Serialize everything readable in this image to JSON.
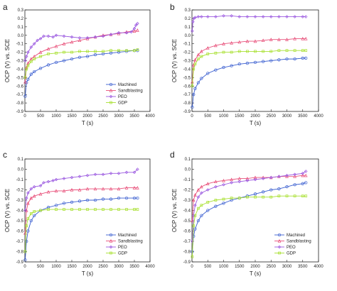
{
  "colors": {
    "Machined": "#3b5fd0",
    "Sandblasting": "#e8507a",
    "PEO": "#9b59e0",
    "GDP": "#a8e030",
    "axis": "#222222"
  },
  "chart_data": [
    {
      "panel_label": "a",
      "type": "line",
      "xlabel": "T (s)",
      "ylabel": "OCP (V) vs. SCE",
      "xlim": [
        0,
        4000
      ],
      "ylim": [
        -0.9,
        0.3
      ],
      "xticks": [
        0,
        500,
        1000,
        1500,
        2000,
        2500,
        3000,
        3500,
        4000
      ],
      "yticks": [
        -0.9,
        -0.8,
        -0.7,
        -0.6,
        -0.5,
        -0.4,
        -0.3,
        -0.2,
        -0.1,
        0.0,
        0.1,
        0.2,
        0.3
      ],
      "ytick_labels": [
        "-0.9",
        "-0.8",
        "-0.7",
        "-0.6",
        "-0.5",
        "-0.4",
        "-0.3",
        "-0.2",
        "-0.1",
        "0.0",
        "0.1",
        "0.2",
        "0.3"
      ],
      "legend": {
        "position": "bottom-right",
        "entries": [
          "Machined",
          "Sandblasting",
          "PEO",
          "GDP"
        ]
      },
      "series": [
        {
          "name": "Machined",
          "marker": "circle",
          "x": [
            10,
            50,
            100,
            200,
            300,
            500,
            750,
            1000,
            1250,
            1500,
            1750,
            2000,
            2250,
            2500,
            2750,
            3000,
            3250,
            3500,
            3600
          ],
          "y": [
            -0.72,
            -0.56,
            -0.52,
            -0.46,
            -0.43,
            -0.39,
            -0.35,
            -0.32,
            -0.3,
            -0.28,
            -0.26,
            -0.25,
            -0.23,
            -0.22,
            -0.21,
            -0.2,
            -0.19,
            -0.18,
            -0.18
          ]
        },
        {
          "name": "Sandblasting",
          "marker": "triangle",
          "x": [
            10,
            50,
            100,
            200,
            300,
            500,
            750,
            1000,
            1250,
            1500,
            1750,
            2000,
            2250,
            2500,
            2750,
            3000,
            3250,
            3500,
            3600
          ],
          "y": [
            -0.55,
            -0.38,
            -0.33,
            -0.28,
            -0.25,
            -0.2,
            -0.16,
            -0.13,
            -0.1,
            -0.08,
            -0.06,
            -0.04,
            -0.02,
            0.0,
            0.01,
            0.02,
            0.04,
            0.05,
            0.06
          ]
        },
        {
          "name": "PEO",
          "marker": "diamond",
          "x": [
            10,
            50,
            100,
            200,
            300,
            400,
            500,
            600,
            750,
            900,
            1000,
            1250,
            1500,
            1750,
            2000,
            2250,
            2500,
            2750,
            3000,
            3250,
            3400,
            3500,
            3550,
            3600
          ],
          "y": [
            -0.3,
            -0.25,
            -0.2,
            -0.14,
            -0.1,
            -0.06,
            -0.04,
            -0.01,
            -0.01,
            -0.02,
            0.0,
            -0.01,
            -0.02,
            -0.03,
            -0.03,
            -0.02,
            -0.01,
            0.01,
            0.03,
            0.03,
            0.04,
            0.08,
            0.12,
            0.14
          ]
        },
        {
          "name": "GDP",
          "marker": "square",
          "x": [
            10,
            50,
            100,
            200,
            300,
            500,
            750,
            1000,
            1250,
            1500,
            1750,
            2000,
            2250,
            2500,
            2750,
            3000,
            3250,
            3500,
            3600
          ],
          "y": [
            -0.5,
            -0.4,
            -0.36,
            -0.31,
            -0.28,
            -0.25,
            -0.22,
            -0.21,
            -0.2,
            -0.2,
            -0.19,
            -0.19,
            -0.19,
            -0.19,
            -0.18,
            -0.18,
            -0.18,
            -0.18,
            -0.17
          ]
        }
      ]
    },
    {
      "panel_label": "b",
      "type": "line",
      "xlabel": "T (s)",
      "ylabel": "OCP (V) vs. SCE",
      "xlim": [
        0,
        4000
      ],
      "ylim": [
        -0.9,
        0.3
      ],
      "xticks": [
        0,
        500,
        1000,
        1500,
        2000,
        2500,
        3000,
        3500,
        4000
      ],
      "yticks": [
        -0.9,
        -0.8,
        -0.7,
        -0.6,
        -0.5,
        -0.4,
        -0.3,
        -0.2,
        -0.1,
        0.0,
        0.1,
        0.2,
        0.3
      ],
      "ytick_labels": [
        "-0.9",
        "-0.8",
        "-0.7",
        "-0.6",
        "-0.5",
        "-0.4",
        "-0.3",
        "-0.2",
        "-0.1",
        "0.0",
        "0.1",
        "0.2",
        "0.3"
      ],
      "legend": {
        "position": "none",
        "entries": []
      },
      "series": [
        {
          "name": "Machined",
          "marker": "circle",
          "x": [
            10,
            50,
            100,
            200,
            300,
            500,
            750,
            1000,
            1250,
            1500,
            1750,
            2000,
            2250,
            2500,
            2750,
            3000,
            3250,
            3500,
            3600
          ],
          "y": [
            -0.85,
            -0.7,
            -0.63,
            -0.56,
            -0.51,
            -0.45,
            -0.41,
            -0.38,
            -0.36,
            -0.34,
            -0.33,
            -0.32,
            -0.31,
            -0.3,
            -0.29,
            -0.28,
            -0.28,
            -0.27,
            -0.27
          ]
        },
        {
          "name": "Sandblasting",
          "marker": "triangle",
          "x": [
            10,
            50,
            100,
            200,
            300,
            500,
            750,
            1000,
            1250,
            1500,
            1750,
            2000,
            2250,
            2500,
            2750,
            3000,
            3250,
            3500,
            3600
          ],
          "y": [
            -0.55,
            -0.35,
            -0.29,
            -0.23,
            -0.19,
            -0.15,
            -0.12,
            -0.1,
            -0.09,
            -0.08,
            -0.07,
            -0.07,
            -0.06,
            -0.05,
            -0.05,
            -0.05,
            -0.04,
            -0.04,
            -0.04
          ]
        },
        {
          "name": "PEO",
          "marker": "diamond",
          "x": [
            10,
            30,
            60,
            100,
            200,
            300,
            500,
            750,
            1000,
            1250,
            1500,
            1750,
            2000,
            2250,
            2500,
            2750,
            3000,
            3250,
            3500,
            3600
          ],
          "y": [
            0.05,
            0.16,
            0.2,
            0.21,
            0.22,
            0.22,
            0.22,
            0.22,
            0.23,
            0.23,
            0.22,
            0.22,
            0.22,
            0.22,
            0.22,
            0.22,
            0.22,
            0.22,
            0.22,
            0.22
          ]
        },
        {
          "name": "GDP",
          "marker": "square",
          "x": [
            10,
            50,
            100,
            200,
            300,
            500,
            750,
            1000,
            1250,
            1500,
            1750,
            2000,
            2250,
            2500,
            2750,
            3000,
            3250,
            3500,
            3600
          ],
          "y": [
            -0.6,
            -0.4,
            -0.34,
            -0.28,
            -0.25,
            -0.22,
            -0.21,
            -0.2,
            -0.2,
            -0.19,
            -0.19,
            -0.19,
            -0.19,
            -0.19,
            -0.18,
            -0.18,
            -0.18,
            -0.18,
            -0.18
          ]
        }
      ]
    },
    {
      "panel_label": "c",
      "type": "line",
      "xlabel": "T (s)",
      "ylabel": "OCP (V) vs. SCE",
      "xlim": [
        0,
        4000
      ],
      "ylim": [
        -0.9,
        0.1
      ],
      "xticks": [
        0,
        500,
        1000,
        1500,
        2000,
        2500,
        3000,
        3500,
        4000
      ],
      "yticks": [
        -0.9,
        -0.8,
        -0.7,
        -0.6,
        -0.5,
        -0.4,
        -0.3,
        -0.2,
        -0.1,
        0.0,
        0.1
      ],
      "ytick_labels": [
        "-0.9",
        "-0.8",
        "-0.7",
        "-0.6",
        "-0.5",
        "-0.4",
        "-0.3",
        "-0.2",
        "-0.1",
        "0.0",
        "0.1"
      ],
      "legend": {
        "position": "bottom-right",
        "entries": [
          "Machined",
          "Sandblasting",
          "PEO",
          "GDP"
        ]
      },
      "series": [
        {
          "name": "Machined",
          "marker": "circle",
          "x": [
            10,
            50,
            100,
            200,
            300,
            500,
            750,
            1000,
            1250,
            1500,
            1750,
            2000,
            2250,
            2500,
            2750,
            3000,
            3250,
            3500,
            3600
          ],
          "y": [
            -0.88,
            -0.7,
            -0.6,
            -0.5,
            -0.45,
            -0.4,
            -0.37,
            -0.35,
            -0.33,
            -0.32,
            -0.31,
            -0.3,
            -0.3,
            -0.29,
            -0.29,
            -0.28,
            -0.28,
            -0.28,
            -0.28
          ]
        },
        {
          "name": "Sandblasting",
          "marker": "triangle",
          "x": [
            10,
            50,
            100,
            200,
            300,
            500,
            750,
            1000,
            1250,
            1500,
            1750,
            2000,
            2250,
            2500,
            2750,
            3000,
            3250,
            3500,
            3600
          ],
          "y": [
            -0.62,
            -0.4,
            -0.33,
            -0.28,
            -0.26,
            -0.24,
            -0.22,
            -0.21,
            -0.21,
            -0.2,
            -0.2,
            -0.19,
            -0.19,
            -0.19,
            -0.19,
            -0.19,
            -0.18,
            -0.18,
            -0.18
          ]
        },
        {
          "name": "PEO",
          "marker": "diamond",
          "x": [
            10,
            50,
            100,
            200,
            300,
            500,
            600,
            750,
            900,
            1000,
            1250,
            1500,
            1750,
            2000,
            2250,
            2500,
            2750,
            3000,
            3250,
            3500,
            3600
          ],
          "y": [
            -0.4,
            -0.28,
            -0.23,
            -0.19,
            -0.17,
            -0.16,
            -0.13,
            -0.12,
            -0.11,
            -0.1,
            -0.09,
            -0.08,
            -0.07,
            -0.06,
            -0.05,
            -0.05,
            -0.04,
            -0.04,
            -0.03,
            -0.03,
            0.0
          ]
        },
        {
          "name": "GDP",
          "marker": "square",
          "x": [
            10,
            50,
            100,
            200,
            300,
            500,
            750,
            1000,
            1250,
            1500,
            1750,
            2000,
            2250,
            2500,
            2750,
            3000,
            3250,
            3500,
            3600
          ],
          "y": [
            -0.8,
            -0.55,
            -0.48,
            -0.43,
            -0.41,
            -0.4,
            -0.39,
            -0.39,
            -0.39,
            -0.39,
            -0.39,
            -0.39,
            -0.39,
            -0.39,
            -0.39,
            -0.39,
            -0.39,
            -0.39,
            -0.39
          ]
        }
      ]
    },
    {
      "panel_label": "d",
      "type": "line",
      "xlabel": "T (s)",
      "ylabel": "OCP (V) vs. SCE",
      "xlim": [
        0,
        4000
      ],
      "ylim": [
        -0.9,
        0.1
      ],
      "xticks": [
        0,
        500,
        1000,
        1500,
        2000,
        2500,
        3000,
        3500,
        4000
      ],
      "yticks": [
        -0.9,
        -0.8,
        -0.7,
        -0.6,
        -0.5,
        -0.4,
        -0.3,
        -0.2,
        -0.1,
        0.0,
        0.1
      ],
      "ytick_labels": [
        "-0.9",
        "-0.8",
        "-0.7",
        "-0.6",
        "-0.5",
        "-0.4",
        "-0.3",
        "-0.2",
        "-0.1",
        "0.0",
        "0.1"
      ],
      "legend": {
        "position": "bottom-right",
        "entries": [
          "Machined",
          "Sandblasting",
          "PEO",
          "GDP"
        ]
      },
      "series": [
        {
          "name": "Machined",
          "marker": "circle",
          "x": [
            10,
            50,
            100,
            200,
            300,
            500,
            750,
            1000,
            1250,
            1500,
            1750,
            2000,
            2250,
            2500,
            2750,
            3000,
            3250,
            3500,
            3600
          ],
          "y": [
            -0.8,
            -0.65,
            -0.58,
            -0.5,
            -0.45,
            -0.4,
            -0.36,
            -0.33,
            -0.3,
            -0.28,
            -0.26,
            -0.24,
            -0.22,
            -0.2,
            -0.19,
            -0.17,
            -0.15,
            -0.14,
            -0.13
          ]
        },
        {
          "name": "Sandblasting",
          "marker": "triangle",
          "x": [
            10,
            50,
            100,
            200,
            300,
            500,
            750,
            1000,
            1250,
            1500,
            1750,
            2000,
            2250,
            2500,
            2750,
            3000,
            3250,
            3500,
            3600
          ],
          "y": [
            -0.5,
            -0.3,
            -0.25,
            -0.2,
            -0.17,
            -0.14,
            -0.12,
            -0.11,
            -0.1,
            -0.09,
            -0.09,
            -0.08,
            -0.08,
            -0.08,
            -0.07,
            -0.07,
            -0.07,
            -0.06,
            -0.06
          ]
        },
        {
          "name": "PEO",
          "marker": "diamond",
          "x": [
            10,
            50,
            100,
            200,
            300,
            500,
            750,
            1000,
            1250,
            1500,
            1750,
            2000,
            2250,
            2500,
            2750,
            3000,
            3250,
            3500,
            3600
          ],
          "y": [
            -0.7,
            -0.45,
            -0.35,
            -0.27,
            -0.23,
            -0.2,
            -0.17,
            -0.15,
            -0.13,
            -0.12,
            -0.11,
            -0.1,
            -0.09,
            -0.08,
            -0.07,
            -0.06,
            -0.05,
            -0.04,
            -0.02
          ]
        },
        {
          "name": "GDP",
          "marker": "square",
          "x": [
            10,
            50,
            100,
            200,
            300,
            500,
            750,
            1000,
            1250,
            1500,
            1750,
            2000,
            2250,
            2500,
            2750,
            3000,
            3250,
            3500,
            3600
          ],
          "y": [
            -0.85,
            -0.55,
            -0.45,
            -0.38,
            -0.35,
            -0.32,
            -0.3,
            -0.29,
            -0.28,
            -0.28,
            -0.27,
            -0.27,
            -0.27,
            -0.27,
            -0.26,
            -0.26,
            -0.26,
            -0.26,
            -0.26
          ]
        }
      ]
    }
  ]
}
